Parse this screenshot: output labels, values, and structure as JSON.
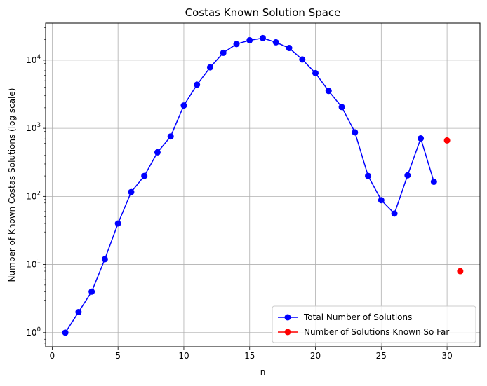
{
  "chart_data": {
    "type": "line",
    "title": "Costas Known Solution Space",
    "xlabel": "n",
    "ylabel": "Number of Known Costas Solutions (log scale)",
    "xlim": [
      -0.5,
      32.5
    ],
    "ylim": [
      0.62,
      35000
    ],
    "y_scale": "log",
    "grid": true,
    "legend_position": "lower-right",
    "x_ticks": [
      0,
      5,
      10,
      15,
      20,
      25,
      30
    ],
    "y_ticks": [
      {
        "value": 1,
        "base": "10",
        "exp": "0"
      },
      {
        "value": 10,
        "base": "10",
        "exp": "1"
      },
      {
        "value": 100,
        "base": "10",
        "exp": "2"
      },
      {
        "value": 1000,
        "base": "10",
        "exp": "3"
      },
      {
        "value": 10000,
        "base": "10",
        "exp": "4"
      }
    ],
    "series": [
      {
        "name": "Total Number of Solutions",
        "color": "#0000ff",
        "line": true,
        "x": [
          1,
          2,
          3,
          4,
          5,
          6,
          7,
          8,
          9,
          10,
          11,
          12,
          13,
          14,
          15,
          16,
          17,
          18,
          19,
          20,
          21,
          22,
          23,
          24,
          25,
          26,
          27,
          28,
          29
        ],
        "y": [
          1,
          2,
          4,
          12,
          40,
          116,
          200,
          444,
          760,
          2160,
          4368,
          7852,
          12828,
          17252,
          19612,
          21104,
          18276,
          15096,
          10240,
          6464,
          3536,
          2052,
          872,
          200,
          88,
          56,
          204,
          712,
          164
        ]
      },
      {
        "name": "Number of Solutions Known So Far",
        "color": "#ff0000",
        "line": false,
        "x": [
          30,
          31
        ],
        "y": [
          664,
          8
        ]
      }
    ]
  }
}
